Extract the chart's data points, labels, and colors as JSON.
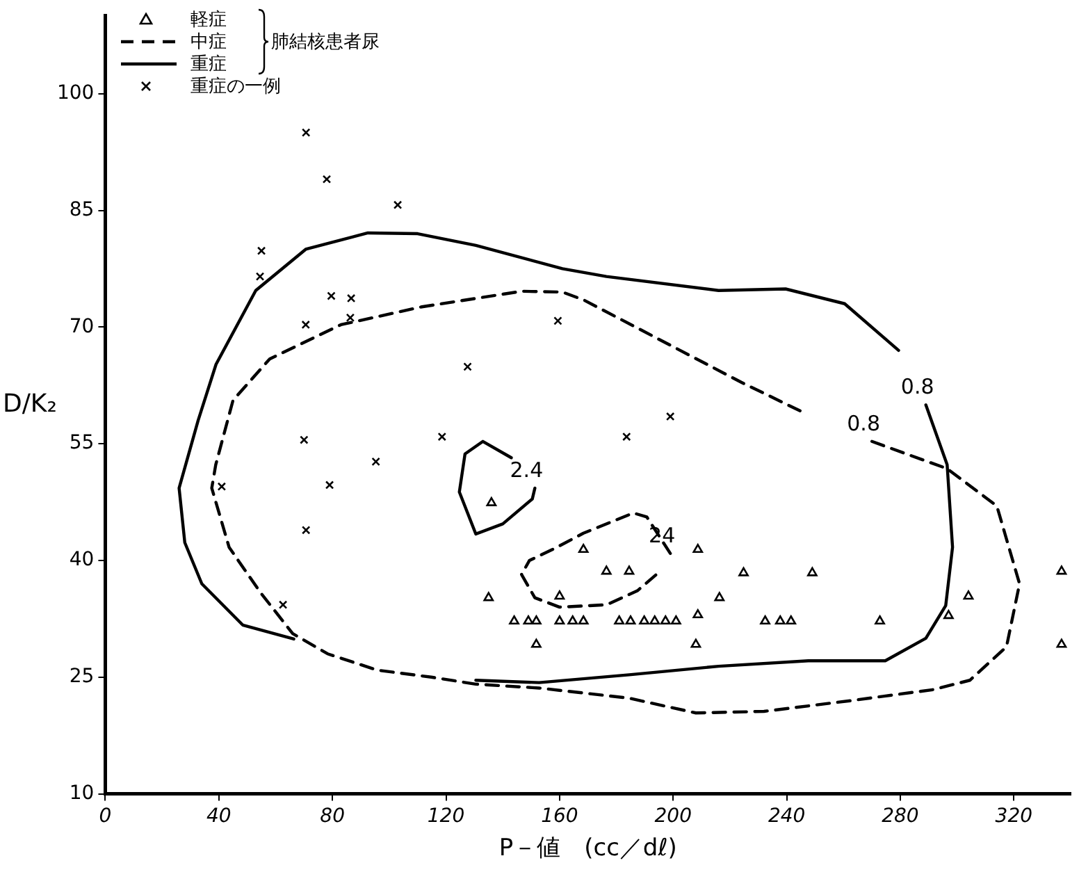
{
  "chart_data": {
    "type": "scatter",
    "xlabel": "P－値　(cc／dℓ)",
    "ylabel": "D/K₂",
    "legend": "top left",
    "legend_title": "肺結核患者尿",
    "xlim": [
      0,
      340
    ],
    "xticks": [
      0,
      40,
      80,
      120,
      160,
      200,
      240,
      280,
      320
    ],
    "ylim": [
      10,
      110
    ],
    "yticks": [
      10,
      25,
      40,
      55,
      70,
      85,
      100
    ],
    "annotations": [
      {
        "text": "0.8",
        "x": 289,
        "y": 60
      },
      {
        "text": "0.8",
        "x": 270,
        "y": 55.3
      },
      {
        "text": "2.4",
        "x": 151.3,
        "y": 49.3
      },
      {
        "text": "24",
        "x": 199,
        "y": 40.9
      }
    ],
    "series": [
      {
        "name": "軽症",
        "type": "scatter",
        "marker": "triangle",
        "color": "#000000",
        "x": [
          136,
          135,
          144,
          149,
          151.8,
          160,
          160,
          151.8,
          168.4,
          176.5,
          184.5,
          208.7,
          224.8,
          249,
          336.8,
          216.3,
          304,
          164.6,
          168.4,
          181,
          185,
          189.8,
          193.5,
          197.3,
          201,
          208.7,
          232.4,
          237.7,
          241.5,
          272.8,
          297,
          208,
          336.8
        ],
        "values": [
          47.4,
          35.2,
          32.2,
          32.2,
          32.2,
          32.2,
          35.4,
          29.2,
          41.4,
          38.6,
          38.6,
          41.4,
          38.4,
          38.4,
          38.6,
          35.2,
          35.4,
          32.2,
          32.2,
          32.2,
          32.2,
          32.2,
          32.2,
          32.2,
          32.2,
          33,
          32.2,
          32.2,
          32.2,
          32.2,
          32.9,
          29.2,
          29.2
        ]
      },
      {
        "name": "中症",
        "type": "line",
        "marker": "none",
        "line_style": "dashed",
        "color": "#000000",
        "x": [
          130.5,
          114.8,
          95.8,
          78.3,
          66,
          54.6,
          43.6,
          37.5,
          38.9,
          45,
          57.9,
          83,
          111.5,
          146.6,
          161,
          168.4,
          198.8,
          224,
          246,
          null,
          270,
          296.5,
          314,
          322,
          317.4,
          304.5,
          291.7,
          263,
          232,
          208,
          184.5,
          152.8,
          130.5,
          null,
          199,
          190.7,
          186,
          168.4,
          158,
          149.4,
          146.6,
          151.3,
          160,
          176.5,
          187.4,
          195.4
        ],
        "values": [
          24.1,
          25,
          25.9,
          28,
          30.6,
          35.9,
          41.7,
          49.3,
          52.3,
          60.6,
          65.9,
          70.3,
          72.6,
          74.6,
          74.5,
          73.5,
          67.7,
          62.9,
          59,
          null,
          55.3,
          51.8,
          47,
          37,
          28.9,
          24.6,
          23.4,
          22,
          20.6,
          20.4,
          22.3,
          23.6,
          24.1,
          null,
          40.9,
          45.6,
          46.1,
          43.5,
          41.5,
          40,
          38.2,
          35.2,
          34,
          34.3,
          36.1,
          38.6
        ]
      },
      {
        "name": "重症",
        "type": "line",
        "marker": "none",
        "line_style": "solid",
        "color": "#000000",
        "x": [
          66.4,
          48.4,
          34,
          28,
          26,
          32.7,
          39,
          53,
          70.6,
          92.5,
          110,
          130.5,
          161,
          176.5,
          216,
          239.6,
          260.4,
          279.4,
          null,
          289,
          296.5,
          298.4,
          296,
          289,
          274.7,
          247.6,
          216,
          184.5,
          152.8,
          130.5,
          null,
          143,
          133,
          126.7,
          124.7,
          130.5,
          140,
          150.4,
          151.3
        ],
        "values": [
          29.9,
          31.7,
          37,
          42.3,
          49.3,
          58,
          65.2,
          74.7,
          80,
          82.1,
          82,
          80.5,
          77.5,
          76.5,
          74.7,
          74.9,
          73,
          67,
          null,
          60,
          52.3,
          41.7,
          34.2,
          30,
          27.1,
          27.1,
          26.4,
          25.3,
          24.3,
          24.6,
          null,
          53.2,
          55.3,
          53.7,
          48.8,
          43.4,
          44.7,
          47.9,
          49.3
        ]
      },
      {
        "name": "重症の一例",
        "type": "scatter",
        "marker": "cross",
        "color": "#000000",
        "x": [
          70.7,
          78,
          103,
          55,
          54.5,
          79.6,
          86.6,
          86.3,
          70.6,
          159.4,
          127.6,
          70,
          118.6,
          95.3,
          79,
          41,
          70.7,
          62.6,
          199,
          183.6
        ],
        "values": [
          95,
          89,
          85.7,
          79.8,
          76.5,
          74,
          73.7,
          71.2,
          70.3,
          70.8,
          64.9,
          55.5,
          55.9,
          52.7,
          49.7,
          49.5,
          43.9,
          34.3,
          58.5,
          55.9
        ]
      }
    ]
  }
}
